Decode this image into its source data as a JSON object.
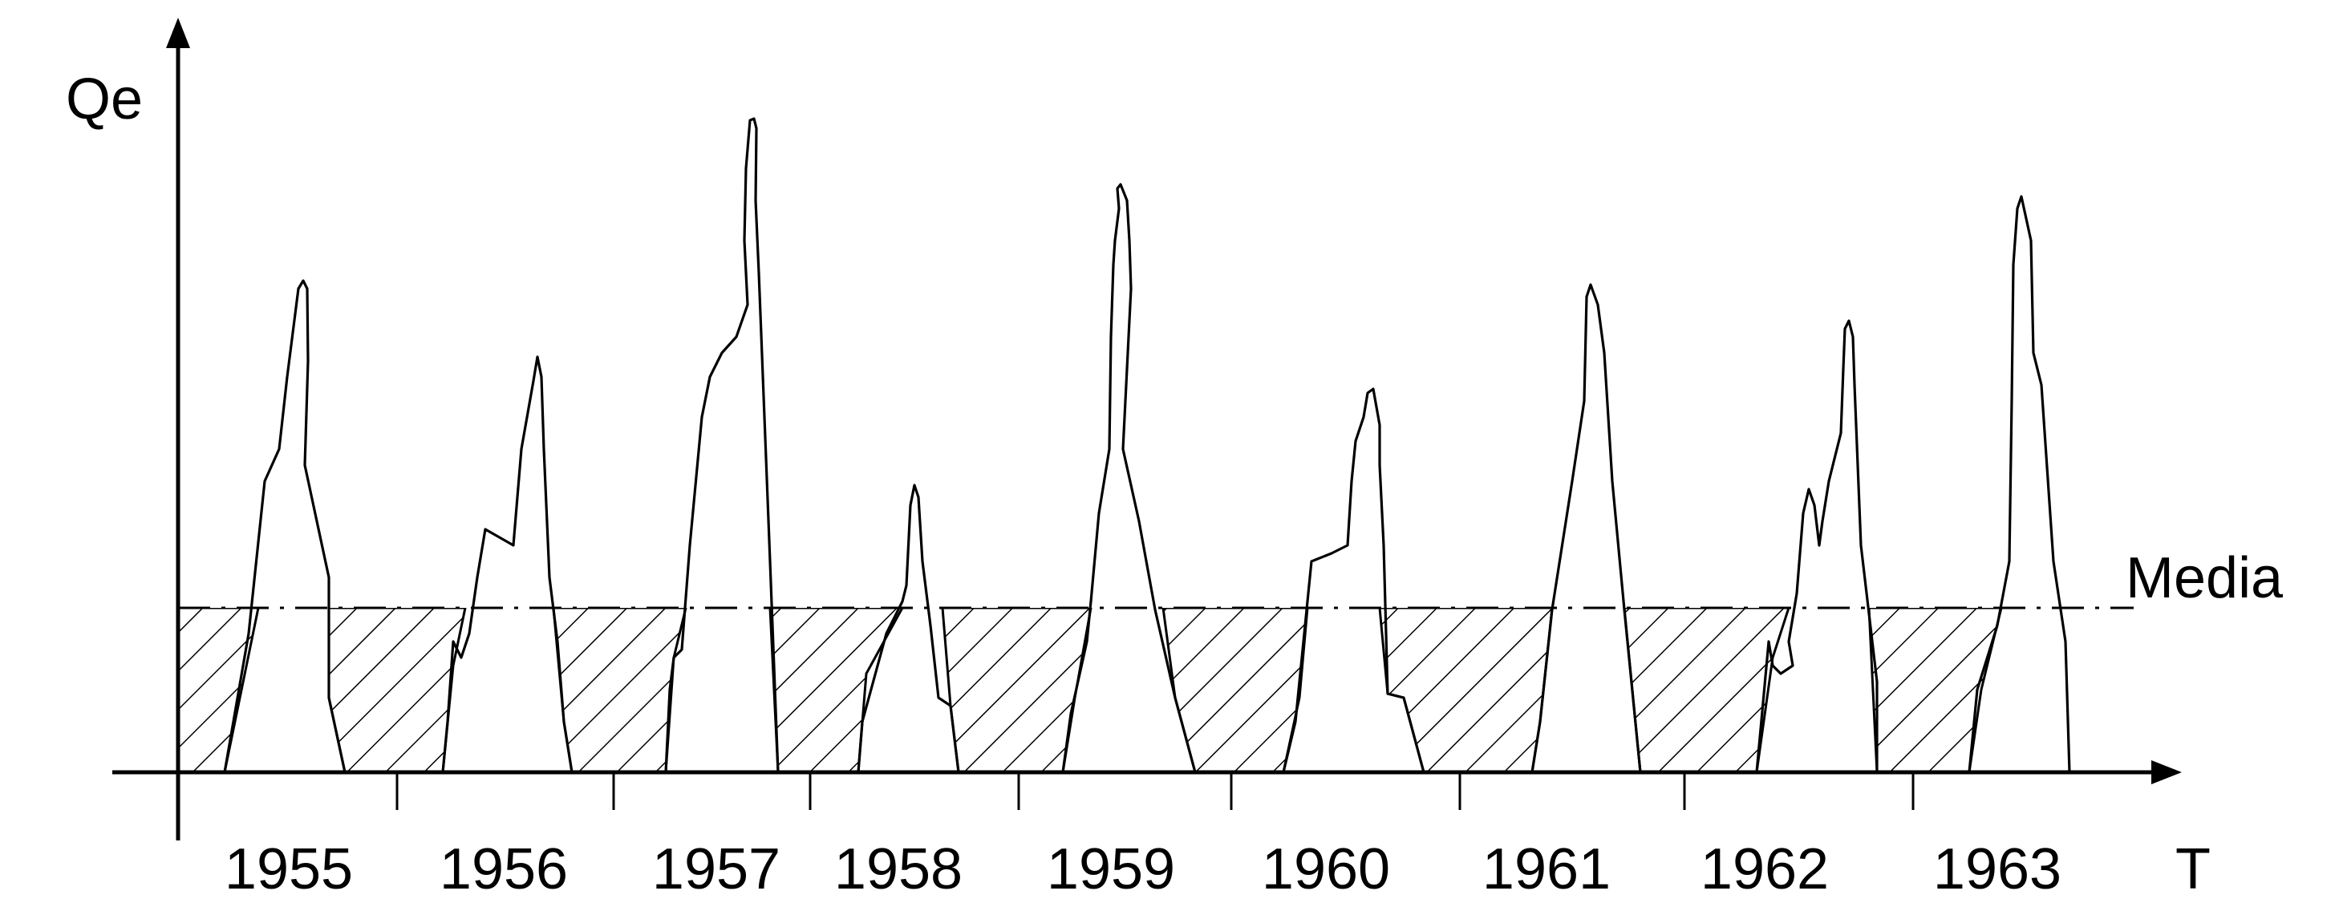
{
  "axes": {
    "y_label": "Qe",
    "x_label": "T"
  },
  "median_label": "Media",
  "years": [
    "1955",
    "1956",
    "1957",
    "1958",
    "1959",
    "1960",
    "1961",
    "1962",
    "1963"
  ]
}
